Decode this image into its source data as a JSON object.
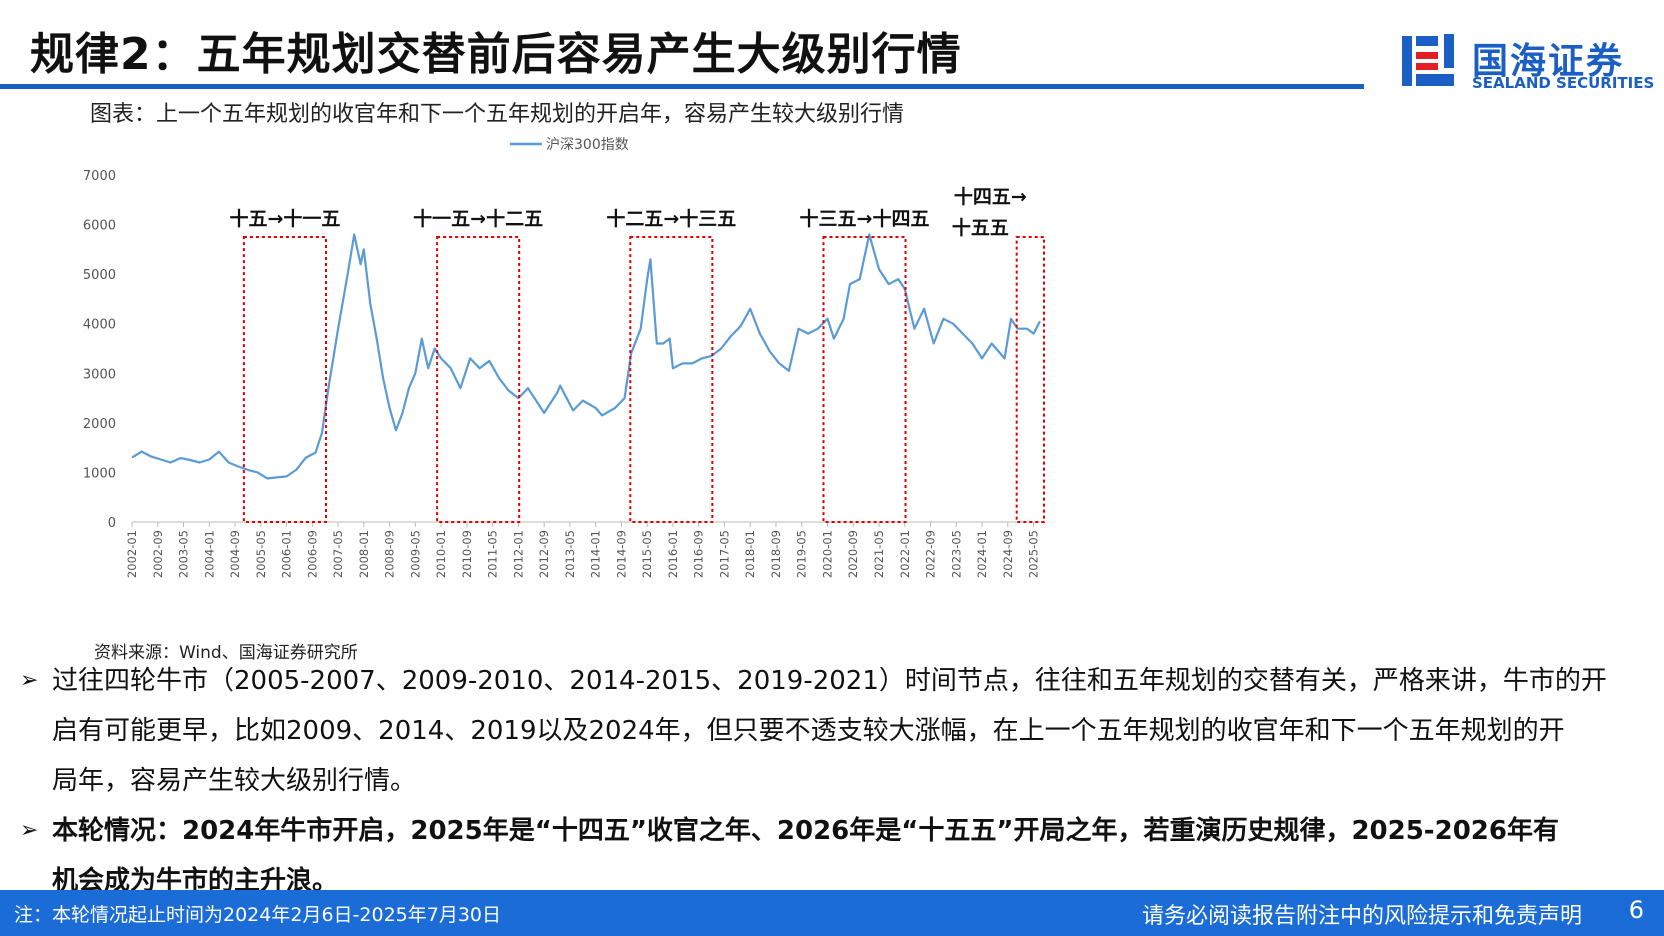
{
  "header": {
    "title": "规律2：五年规划交替前后容易产生大级别行情",
    "brand_cn": "国海证券",
    "brand_en": "SEALAND SECURITIES",
    "accent_color": "#1b5fc4"
  },
  "figure": {
    "caption": "图表：上一个五年规划的收官年和下一个五年规划的开启年，容易产生较大级别行情",
    "source": "资料来源：Wind、国海证券研究所"
  },
  "chart_data": {
    "type": "line",
    "series": [
      {
        "name": "沪深300指数",
        "color": "#5b9bd5",
        "points": [
          [
            "2002-01",
            1300
          ],
          [
            "2002-04",
            1420
          ],
          [
            "2002-07",
            1320
          ],
          [
            "2002-10",
            1260
          ],
          [
            "2003-01",
            1200
          ],
          [
            "2003-04",
            1290
          ],
          [
            "2003-07",
            1250
          ],
          [
            "2003-10",
            1200
          ],
          [
            "2004-01",
            1260
          ],
          [
            "2004-04",
            1420
          ],
          [
            "2004-07",
            1200
          ],
          [
            "2004-10",
            1120
          ],
          [
            "2005-01",
            1050
          ],
          [
            "2005-04",
            1000
          ],
          [
            "2005-07",
            880
          ],
          [
            "2005-10",
            900
          ],
          [
            "2006-01",
            920
          ],
          [
            "2006-04",
            1050
          ],
          [
            "2006-07",
            1300
          ],
          [
            "2006-10",
            1400
          ],
          [
            "2006-12",
            1800
          ],
          [
            "2007-02",
            2700
          ],
          [
            "2007-05",
            3900
          ],
          [
            "2007-08",
            5000
          ],
          [
            "2007-10",
            5800
          ],
          [
            "2007-12",
            5200
          ],
          [
            "2008-01",
            5500
          ],
          [
            "2008-03",
            4400
          ],
          [
            "2008-05",
            3700
          ],
          [
            "2008-07",
            2900
          ],
          [
            "2008-09",
            2300
          ],
          [
            "2008-11",
            1850
          ],
          [
            "2009-01",
            2200
          ],
          [
            "2009-03",
            2700
          ],
          [
            "2009-05",
            3000
          ],
          [
            "2009-07",
            3700
          ],
          [
            "2009-09",
            3100
          ],
          [
            "2009-11",
            3500
          ],
          [
            "2010-01",
            3300
          ],
          [
            "2010-04",
            3100
          ],
          [
            "2010-07",
            2700
          ],
          [
            "2010-10",
            3300
          ],
          [
            "2011-01",
            3100
          ],
          [
            "2011-04",
            3250
          ],
          [
            "2011-07",
            2900
          ],
          [
            "2011-10",
            2650
          ],
          [
            "2012-01",
            2500
          ],
          [
            "2012-04",
            2700
          ],
          [
            "2012-07",
            2400
          ],
          [
            "2012-09",
            2200
          ],
          [
            "2013-01",
            2600
          ],
          [
            "2013-02",
            2750
          ],
          [
            "2013-06",
            2250
          ],
          [
            "2013-09",
            2450
          ],
          [
            "2014-01",
            2300
          ],
          [
            "2014-03",
            2150
          ],
          [
            "2014-07",
            2300
          ],
          [
            "2014-10",
            2500
          ],
          [
            "2014-12",
            3400
          ],
          [
            "2015-03",
            3900
          ],
          [
            "2015-05",
            4900
          ],
          [
            "2015-06",
            5300
          ],
          [
            "2015-08",
            3600
          ],
          [
            "2015-10",
            3600
          ],
          [
            "2015-12",
            3700
          ],
          [
            "2016-01",
            3100
          ],
          [
            "2016-04",
            3200
          ],
          [
            "2016-07",
            3200
          ],
          [
            "2016-10",
            3300
          ],
          [
            "2017-01",
            3350
          ],
          [
            "2017-04",
            3500
          ],
          [
            "2017-07",
            3750
          ],
          [
            "2017-10",
            3950
          ],
          [
            "2018-01",
            4300
          ],
          [
            "2018-04",
            3800
          ],
          [
            "2018-07",
            3450
          ],
          [
            "2018-10",
            3200
          ],
          [
            "2019-01",
            3050
          ],
          [
            "2019-04",
            3900
          ],
          [
            "2019-07",
            3800
          ],
          [
            "2019-10",
            3900
          ],
          [
            "2020-01",
            4100
          ],
          [
            "2020-03",
            3700
          ],
          [
            "2020-06",
            4100
          ],
          [
            "2020-08",
            4800
          ],
          [
            "2020-11",
            4900
          ],
          [
            "2021-02",
            5800
          ],
          [
            "2021-05",
            5100
          ],
          [
            "2021-08",
            4800
          ],
          [
            "2021-11",
            4900
          ],
          [
            "2022-01",
            4700
          ],
          [
            "2022-04",
            3900
          ],
          [
            "2022-07",
            4300
          ],
          [
            "2022-10",
            3600
          ],
          [
            "2023-01",
            4100
          ],
          [
            "2023-04",
            4000
          ],
          [
            "2023-07",
            3800
          ],
          [
            "2023-10",
            3600
          ],
          [
            "2024-01",
            3300
          ],
          [
            "2024-04",
            3600
          ],
          [
            "2024-08",
            3300
          ],
          [
            "2024-10",
            4100
          ],
          [
            "2024-12",
            3900
          ],
          [
            "2025-03",
            3900
          ],
          [
            "2025-05",
            3800
          ],
          [
            "2025-07",
            4050
          ]
        ]
      }
    ],
    "x_ticks": [
      "2002-01",
      "2002-09",
      "2003-05",
      "2004-01",
      "2004-09",
      "2005-05",
      "2006-01",
      "2006-09",
      "2007-05",
      "2008-01",
      "2008-09",
      "2009-05",
      "2010-01",
      "2010-09",
      "2011-05",
      "2012-01",
      "2012-09",
      "2013-05",
      "2014-01",
      "2014-09",
      "2015-05",
      "2016-01",
      "2016-09",
      "2017-05",
      "2018-01",
      "2018-09",
      "2019-05",
      "2020-01",
      "2020-09",
      "2021-05",
      "2022-01",
      "2022-09",
      "2023-05",
      "2024-01",
      "2024-09",
      "2025-05"
    ],
    "y_ticks": [
      0,
      1000,
      2000,
      3000,
      4000,
      5000,
      6000,
      7000
    ],
    "ylim": [
      0,
      7000
    ],
    "xlim": [
      "2002-01",
      "2025-07"
    ],
    "grid": false,
    "legend": "top-center",
    "highlight_color": "#e00000",
    "highlights": [
      {
        "label": "十五→十一五",
        "start": "2005-01",
        "end": "2006-12"
      },
      {
        "label": "十一五→十二五",
        "start": "2010-01",
        "end": "2011-12"
      },
      {
        "label": "十二五→十三五",
        "start": "2015-01",
        "end": "2016-12"
      },
      {
        "label": "十三五→十四五",
        "start": "2020-01",
        "end": "2021-12"
      },
      {
        "label": "十四五→",
        "label2": "十五五",
        "start": "2025-01",
        "end": "2025-07"
      }
    ]
  },
  "bullets": [
    {
      "lines": [
        "过往四轮牛市（2005-2007、2009-2010、2014-2015、2019-2021）时间节点，往往和五年规划的交替有关，严格来讲，牛市的开",
        "启有可能更早，比如2009、2014、2019以及2024年，但只要不透支较大涨幅，在上一个五年规划的收官年和下一个五年规划的开",
        "局年，容易产生较大级别行情。"
      ]
    },
    {
      "lines": [
        "本轮情况：2024年牛市开启，2025年是“十四五”收官之年、2026年是“十五五”开局之年，若重演历史规律，2025-2026年有",
        "机会成为牛市的主升浪。"
      ]
    }
  ],
  "footer": {
    "note": "注：本轮情况起止时间为2024年2月6日-2025年7月30日",
    "disclaimer": "请务必阅读报告附注中的风险提示和免责声明",
    "page": "6"
  }
}
